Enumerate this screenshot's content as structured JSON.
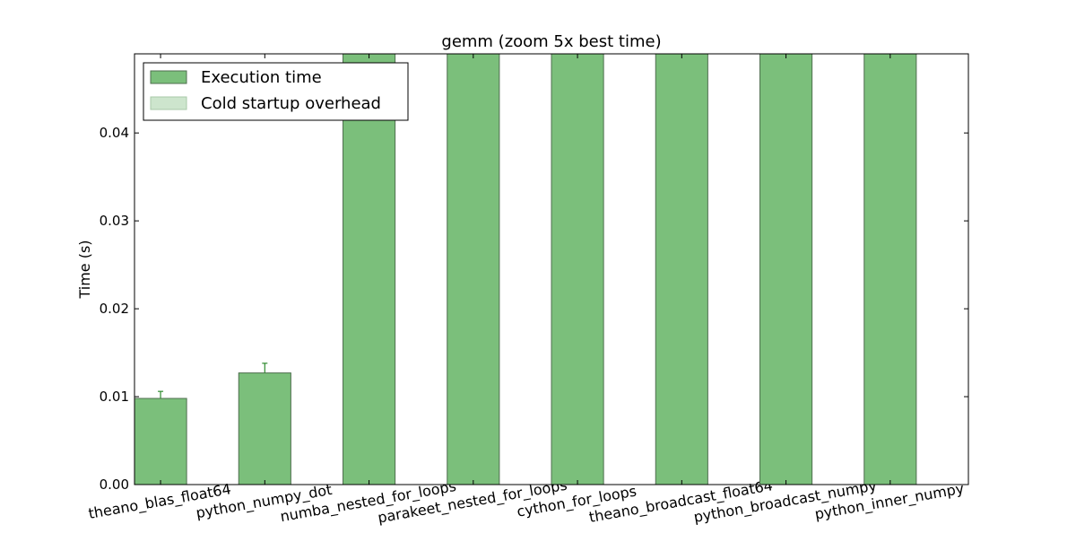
{
  "chart_data": {
    "type": "bar",
    "title": "gemm (zoom 5x best time)",
    "xlabel": "",
    "ylabel": "Time (s)",
    "ylim": [
      0,
      0.049
    ],
    "yticks": [
      "0.00",
      "0.01",
      "0.02",
      "0.03",
      "0.04"
    ],
    "ytick_values": [
      0.0,
      0.01,
      0.02,
      0.03,
      0.04
    ],
    "categories": [
      "theano_blas_float64",
      "python_numpy_dot",
      "numba_nested_for_loops",
      "parakeet_nested_for_loops",
      "cython_for_loops",
      "theano_broadcast_float64",
      "python_broadcast_numpy",
      "python_inner_numpy"
    ],
    "series": [
      {
        "name": "Execution time",
        "values": [
          0.0098,
          0.0127,
          0.049,
          0.049,
          0.049,
          0.049,
          0.049,
          0.049
        ],
        "error_upper": [
          0.0008,
          0.0011,
          null,
          null,
          null,
          null,
          null,
          null
        ],
        "color": "#7bbf7b"
      },
      {
        "name": "Cold startup overhead",
        "values": [
          0,
          0,
          0,
          0,
          0,
          0,
          0,
          0
        ],
        "color": "#cde5cd"
      }
    ],
    "legend_position": "top-left",
    "grid": false,
    "edge_color": "#4f6f4f",
    "errorbar_color": "#2e8b2e"
  }
}
